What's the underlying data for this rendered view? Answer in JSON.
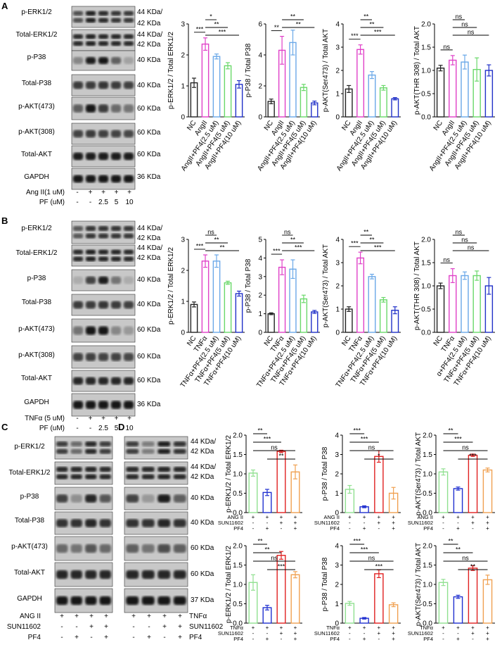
{
  "panels": {
    "A": "A",
    "B": "B",
    "C": "C",
    "D": "D"
  },
  "labels": {
    "pERK": "p-ERK1/2",
    "tERK": "Total-ERK1/2",
    "pP38": "p-P38",
    "tP38": "Total-P38",
    "pAKT473": "p-AKT(473)",
    "pAKT308": "p-AKT(308)",
    "tAKT": "Total-AKT",
    "gapdh": "GAPDH",
    "kd44": "44 KDa/",
    "kd42": "42 KDa",
    "kd40": "40 KDa",
    "kd60": "60 KDa",
    "kd36": "36 KDa",
    "kd36b": "36  KDa",
    "kd37": "37 KDa"
  },
  "treatments": {
    "A": {
      "row1_label": "Ang II(1 uM)",
      "row1": [
        "-",
        "+",
        "+",
        "+",
        "+"
      ],
      "row2_label": "PF (uM)",
      "row2": [
        "-",
        "-",
        "2.5",
        "5",
        "10"
      ]
    },
    "B": {
      "row1_label": "TNFα (5 uM)",
      "row1": [
        "-",
        "+",
        "+",
        "+",
        "+"
      ],
      "row2_label": "PF (uM)",
      "row2": [
        "-",
        "-",
        "2.5",
        "5",
        "10"
      ]
    },
    "C": {
      "r1": "ANG II",
      "r2": "SUN11602",
      "r3": "PF4",
      "v1": [
        "+",
        "+",
        "+",
        "+"
      ],
      "v2": [
        "-",
        "-",
        "+",
        "+"
      ],
      "v3": [
        "-",
        "+",
        "-",
        "+"
      ]
    },
    "D": {
      "r1": "TNFα",
      "r2": "SUN11602",
      "r3": "PF4",
      "v1": [
        "+",
        "+",
        "+",
        "+"
      ],
      "v2": [
        "-",
        "-",
        "+",
        "+"
      ],
      "v3": [
        "-",
        "+",
        "-",
        "+"
      ]
    }
  },
  "colors": {
    "nc": "#222222",
    "model": "#e040c8",
    "low": "#6aa8e8",
    "mid": "#6ad86a",
    "high": "#2030c8",
    "ctrl": "#90e090",
    "pf": "#2030d0",
    "sun": "#e02020",
    "combo": "#f0a050"
  },
  "chart_data": [
    {
      "id": "A1",
      "type": "bar",
      "ylabel": "p-ERK1/2 / Total ERK1/2",
      "ylim": [
        0,
        3
      ],
      "yticks": [
        0,
        1,
        2,
        3
      ],
      "categories": [
        "NC",
        "AngII",
        "AngII+PF4(2.5 uM)",
        "AngII+PF4(5 uM)",
        "AngII+PF4(10 uM)"
      ],
      "values": [
        1.1,
        2.35,
        1.95,
        1.65,
        1.05
      ],
      "errors": [
        0.15,
        0.2,
        0.08,
        0.1,
        0.12
      ],
      "brackets": [
        {
          "a": 1,
          "b": 2,
          "t": "*"
        },
        {
          "a": 1,
          "b": 3,
          "t": "**"
        },
        {
          "a": 1,
          "b": 4,
          "t": "***"
        },
        {
          "a": 0,
          "b": 1,
          "t": "***"
        }
      ]
    },
    {
      "id": "A2",
      "type": "bar",
      "ylabel": "p-P38 / Total P38",
      "ylim": [
        0,
        6
      ],
      "yticks": [
        0,
        2,
        4,
        6
      ],
      "categories": [
        "NC",
        "AngII",
        "AngII+PF4(2.5 uM)",
        "AngII+PF4(5 uM)",
        "AngII+PF4(10 uM)"
      ],
      "values": [
        1.0,
        4.3,
        4.8,
        1.9,
        0.9
      ],
      "errors": [
        0.15,
        0.9,
        0.8,
        0.2,
        0.12
      ],
      "brackets": [
        {
          "a": 0,
          "b": 1,
          "t": "**"
        },
        {
          "a": 1,
          "b": 3,
          "t": "**"
        },
        {
          "a": 1,
          "b": 4,
          "t": "**"
        }
      ]
    },
    {
      "id": "A3",
      "type": "bar",
      "ylabel": "p-AKT(Ser473) / Total AKT",
      "ylim": [
        0,
        4
      ],
      "yticks": [
        0,
        1,
        2,
        3,
        4
      ],
      "categories": [
        "NC",
        "AngII",
        "AngII+PF4(2.5 uM)",
        "AngII+PF4(5 uM)",
        "AngII+PF4(10 uM)"
      ],
      "values": [
        1.2,
        2.9,
        1.8,
        1.25,
        0.78
      ],
      "errors": [
        0.15,
        0.2,
        0.15,
        0.1,
        0.05
      ],
      "brackets": [
        {
          "a": 1,
          "b": 2,
          "t": "**"
        },
        {
          "a": 1,
          "b": 3,
          "t": "**"
        },
        {
          "a": 1,
          "b": 4,
          "t": "***"
        },
        {
          "a": 0,
          "b": 1,
          "t": "***"
        }
      ]
    },
    {
      "id": "A4",
      "type": "bar",
      "ylabel": "p-AKT(THR 308) / Total AKT",
      "ylim": [
        0,
        2
      ],
      "yticks": [
        0.0,
        0.5,
        1.0,
        1.5,
        2.0
      ],
      "categories": [
        "NC",
        "AngII",
        "AngII+PF4(2.5 uM)",
        "AngII+PF4(5 uM)",
        "AngII+PF4(10 uM)"
      ],
      "values": [
        1.05,
        1.22,
        1.18,
        1.02,
        1.0
      ],
      "errors": [
        0.06,
        0.1,
        0.15,
        0.25,
        0.12
      ],
      "brackets": [
        {
          "a": 0,
          "b": 1,
          "t": "ns"
        },
        {
          "a": 1,
          "b": 2,
          "t": "ns"
        },
        {
          "a": 1,
          "b": 3,
          "t": "ns"
        },
        {
          "a": 1,
          "b": 4,
          "t": "ns"
        }
      ]
    },
    {
      "id": "B1",
      "type": "bar",
      "ylabel": "p-ERK1/2 / Total ERK1/2",
      "ylim": [
        0,
        3
      ],
      "yticks": [
        0,
        1,
        2,
        3
      ],
      "categories": [
        "NC",
        "TNFα",
        "TNFα+PF4(2.5 uM)",
        "TNFα+PF4(5 uM)",
        "TNFα+PF4(10 uM)"
      ],
      "values": [
        0.9,
        2.3,
        2.3,
        1.6,
        1.25
      ],
      "errors": [
        0.08,
        0.2,
        0.2,
        0.05,
        0.08
      ],
      "brackets": [
        {
          "a": 0,
          "b": 1,
          "t": "***"
        },
        {
          "a": 1,
          "b": 2,
          "t": "ns"
        },
        {
          "a": 1,
          "b": 3,
          "t": "**"
        },
        {
          "a": 1,
          "b": 4,
          "t": "**"
        }
      ]
    },
    {
      "id": "B2",
      "type": "bar",
      "ylabel": "p-P38 / Total P38",
      "ylim": [
        0,
        5
      ],
      "yticks": [
        0,
        1,
        2,
        3,
        4,
        5
      ],
      "categories": [
        "NC",
        "TNFα",
        "TNFα+PF4(2.5 uM)",
        "TNFα+PF4(5 uM)",
        "TNFα+PF4(10 uM)"
      ],
      "values": [
        1.0,
        3.5,
        3.4,
        1.8,
        1.1
      ],
      "errors": [
        0.05,
        0.4,
        0.5,
        0.2,
        0.08
      ],
      "brackets": [
        {
          "a": 0,
          "b": 1,
          "t": "***"
        },
        {
          "a": 1,
          "b": 2,
          "t": "ns"
        },
        {
          "a": 1,
          "b": 3,
          "t": "**"
        },
        {
          "a": 1,
          "b": 4,
          "t": "***"
        }
      ]
    },
    {
      "id": "B3",
      "type": "bar",
      "ylabel": "p-AKT(Ser473) / Total AKT",
      "ylim": [
        0,
        4
      ],
      "yticks": [
        0,
        1,
        2,
        3,
        4
      ],
      "categories": [
        "NC",
        "TNFα",
        "TNFα+PF4(2.5 uM)",
        "TNFα+PF4(5 uM)",
        "TNFα+PF4(10 uM)"
      ],
      "values": [
        1.0,
        3.2,
        2.4,
        1.4,
        0.95
      ],
      "errors": [
        0.1,
        0.25,
        0.1,
        0.1,
        0.15
      ],
      "brackets": [
        {
          "a": 0,
          "b": 1,
          "t": "***"
        },
        {
          "a": 1,
          "b": 2,
          "t": "**"
        },
        {
          "a": 1,
          "b": 3,
          "t": "**"
        },
        {
          "a": 1,
          "b": 4,
          "t": "***"
        }
      ]
    },
    {
      "id": "B4",
      "type": "bar",
      "ylabel": "p-AKT(THR 308) / Total AKT",
      "ylim": [
        0,
        2
      ],
      "yticks": [
        0.0,
        0.5,
        1.0,
        1.5,
        2.0
      ],
      "categories": [
        "NC",
        "TNFα",
        "α+PF4(2.5 uM)",
        "TNFα+PF4(5 uM)",
        "TNFα+PF4(10 uM)"
      ],
      "values": [
        1.0,
        1.22,
        1.22,
        1.22,
        1.0
      ],
      "errors": [
        0.06,
        0.15,
        0.08,
        0.1,
        0.18
      ],
      "brackets": [
        {
          "a": 0,
          "b": 1,
          "t": "ns"
        },
        {
          "a": 1,
          "b": 2,
          "t": "ns"
        },
        {
          "a": 1,
          "b": 3,
          "t": "ns"
        },
        {
          "a": 1,
          "b": 4,
          "t": "ns"
        }
      ]
    },
    {
      "id": "D1",
      "type": "bar",
      "ylabel": "p-ERK1/2 / Total ERK1/2",
      "ylim": [
        0,
        2.0
      ],
      "yticks": [
        0.0,
        0.5,
        1.0,
        1.5,
        2.0
      ],
      "rowlabels": [
        "ANG II",
        "SUN11602",
        "PF4"
      ],
      "signs": [
        [
          "+",
          "+",
          "+",
          "+"
        ],
        [
          "-",
          "-",
          "+",
          "+"
        ],
        [
          "-",
          "+",
          "-",
          "+"
        ]
      ],
      "values": [
        1.02,
        0.52,
        1.58,
        1.05
      ],
      "errors": [
        0.08,
        0.08,
        0.03,
        0.18
      ],
      "brackets": [
        {
          "a": 0,
          "b": 1,
          "t": "**"
        },
        {
          "a": 0,
          "b": 2,
          "t": "***"
        },
        {
          "a": 0,
          "b": 3,
          "t": "ns"
        },
        {
          "a": 1,
          "b": 3,
          "t": "**"
        }
      ]
    },
    {
      "id": "D2",
      "type": "bar",
      "ylabel": "p-P38 / Total P38",
      "ylim": [
        0,
        4
      ],
      "yticks": [
        0,
        1,
        2,
        3,
        4
      ],
      "rowlabels": [
        "ANG II",
        "SUN11602",
        "PF4"
      ],
      "signs": [
        [
          "+",
          "+",
          "+",
          "+"
        ],
        [
          "-",
          "-",
          "+",
          "+"
        ],
        [
          "-",
          "+",
          "-",
          "+"
        ]
      ],
      "values": [
        1.2,
        0.3,
        2.9,
        1.0
      ],
      "errors": [
        0.2,
        0.05,
        0.3,
        0.3
      ],
      "brackets": [
        {
          "a": 0,
          "b": 1,
          "t": "***"
        },
        {
          "a": 0,
          "b": 2,
          "t": "***"
        },
        {
          "a": 0,
          "b": 3,
          "t": "ns"
        },
        {
          "a": 1,
          "b": 3,
          "t": "*"
        }
      ]
    },
    {
      "id": "D3",
      "type": "bar",
      "ylabel": "p-AKT(Ser473) / Total AKT",
      "ylim": [
        0,
        2.0
      ],
      "yticks": [
        0.0,
        0.5,
        1.0,
        1.5,
        2.0
      ],
      "rowlabels": [
        "ANG II",
        "SUN11602",
        "PF4"
      ],
      "signs": [
        [
          "+",
          "+",
          "+",
          "+"
        ],
        [
          "-",
          "-",
          "+",
          "+"
        ],
        [
          "-",
          "+",
          "-",
          "+"
        ]
      ],
      "values": [
        1.05,
        0.62,
        1.48,
        1.1
      ],
      "errors": [
        0.08,
        0.04,
        0.03,
        0.05
      ],
      "brackets": [
        {
          "a": 0,
          "b": 1,
          "t": "**"
        },
        {
          "a": 0,
          "b": 2,
          "t": "***"
        },
        {
          "a": 0,
          "b": 3,
          "t": "ns"
        },
        {
          "a": 1,
          "b": 3,
          "t": "***"
        }
      ]
    },
    {
      "id": "D4",
      "type": "bar",
      "ylabel": "p-ERK1/2 / Total ERK1/2",
      "ylim": [
        0,
        2.0
      ],
      "yticks": [
        0.0,
        0.5,
        1.0,
        1.5,
        2.0
      ],
      "rowlabels": [
        "TNFα",
        "SUN11602",
        "PF4"
      ],
      "signs": [
        [
          "+",
          "+",
          "+",
          "+"
        ],
        [
          "-",
          "-",
          "+",
          "+"
        ],
        [
          "-",
          "+",
          "-",
          "+"
        ]
      ],
      "values": [
        1.05,
        0.4,
        1.75,
        1.25
      ],
      "errors": [
        0.2,
        0.06,
        0.1,
        0.08
      ],
      "brackets": [
        {
          "a": 0,
          "b": 1,
          "t": "**"
        },
        {
          "a": 0,
          "b": 2,
          "t": "**"
        },
        {
          "a": 0,
          "b": 3,
          "t": "ns"
        },
        {
          "a": 1,
          "b": 3,
          "t": "***"
        }
      ]
    },
    {
      "id": "D5",
      "type": "bar",
      "ylabel": "p-P38 / Total P38",
      "ylim": [
        0,
        4
      ],
      "yticks": [
        0,
        1,
        2,
        3,
        4
      ],
      "rowlabels": [
        "TNFα",
        "SUN11602",
        "PF4"
      ],
      "signs": [
        [
          "+",
          "+",
          "+",
          "+"
        ],
        [
          "-",
          "-",
          "+",
          "+"
        ],
        [
          "-",
          "+",
          "-",
          "+"
        ]
      ],
      "values": [
        1.02,
        0.25,
        2.55,
        0.95
      ],
      "errors": [
        0.1,
        0.04,
        0.2,
        0.1
      ],
      "brackets": [
        {
          "a": 0,
          "b": 1,
          "t": "***"
        },
        {
          "a": 0,
          "b": 2,
          "t": "***"
        },
        {
          "a": 0,
          "b": 3,
          "t": "ns"
        },
        {
          "a": 1,
          "b": 3,
          "t": "***"
        }
      ]
    },
    {
      "id": "D6",
      "type": "bar",
      "ylabel": "p-AKT(Ser473) / Total AKT",
      "ylim": [
        0,
        2.0
      ],
      "yticks": [
        0.0,
        0.5,
        1.0,
        1.5,
        2.0
      ],
      "rowlabels": [
        "TNFα",
        "SUN11602",
        "PF4"
      ],
      "signs": [
        [
          "+",
          "+",
          "+",
          "+"
        ],
        [
          "-",
          "-",
          "+",
          "+"
        ],
        [
          "-",
          "+",
          "-",
          "+"
        ]
      ],
      "values": [
        1.05,
        0.68,
        1.42,
        1.12
      ],
      "errors": [
        0.08,
        0.04,
        0.06,
        0.12
      ],
      "brackets": [
        {
          "a": 0,
          "b": 1,
          "t": "**"
        },
        {
          "a": 0,
          "b": 2,
          "t": "**"
        },
        {
          "a": 0,
          "b": 3,
          "t": "ns"
        },
        {
          "a": 1,
          "b": 3,
          "t": "**"
        }
      ]
    }
  ]
}
